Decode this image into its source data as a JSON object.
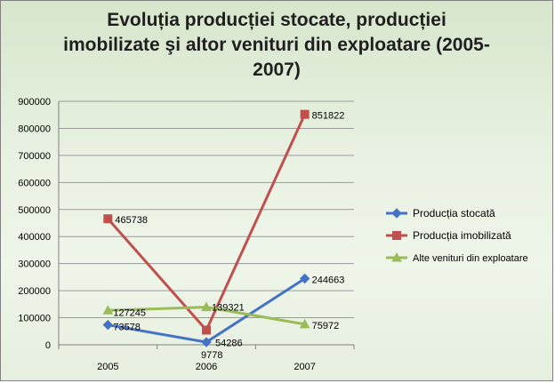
{
  "chart_data": {
    "type": "line",
    "title": "Evoluția producției stocate, producției\nimobilizate şi altor venituri din exploatare (2005-\n2007)",
    "categories": [
      "2005",
      "2006",
      "2007"
    ],
    "ylim": [
      0,
      900000
    ],
    "yticks": [
      0,
      100000,
      200000,
      300000,
      400000,
      500000,
      600000,
      700000,
      800000,
      900000
    ],
    "grid": true,
    "legend_position": "right",
    "series": [
      {
        "name": "Producția stocată",
        "values": [
          73578,
          9778,
          244663
        ],
        "color": "#4472c4",
        "marker": "diamond"
      },
      {
        "name": "Producția imobilizată",
        "values": [
          465738,
          54286,
          851822
        ],
        "color": "#c0504d",
        "marker": "square"
      },
      {
        "name": "Alte venituri din exploatare",
        "values": [
          127245,
          139321,
          75972
        ],
        "color": "#9bbb59",
        "marker": "triangle"
      }
    ]
  }
}
